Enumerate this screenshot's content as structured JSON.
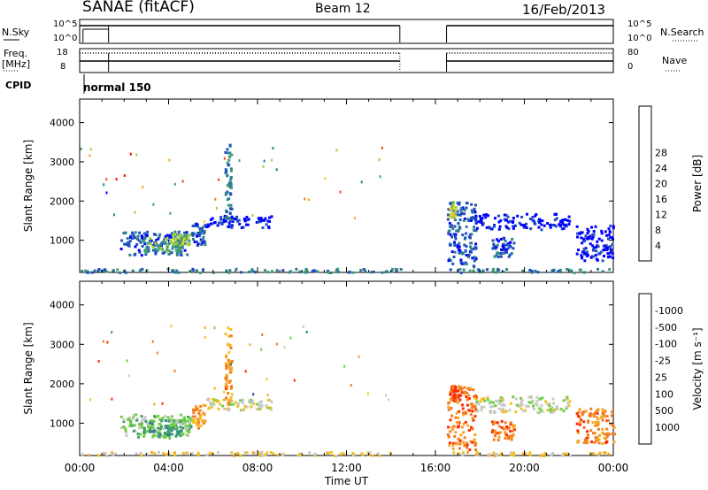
{
  "header": {
    "station": "SANAE (fitACF)",
    "beam": "Beam 12",
    "date": "16/Feb/2013"
  },
  "strip_labels": {
    "nsky": "N.Sky",
    "nsky_ticks": [
      "10^5",
      "10^0"
    ],
    "nsearch": "N.Search",
    "nsearch_ticks": [
      "10^5",
      "10^0"
    ],
    "freq": "Freq.",
    "freq_unit": "[MHz]",
    "freq_ticks": [
      "18",
      "8"
    ],
    "nave": "Nave",
    "nave_ticks": [
      "80",
      "0"
    ],
    "cpid": "CPID",
    "cpid_value": "normal 150"
  },
  "chart_data": [
    {
      "type": "heatmap",
      "name": "power",
      "xlabel": "",
      "ylabel": "Slant Range [km]",
      "x_ticks": [
        "00:00",
        "04:00",
        "08:00",
        "12:00",
        "16:00",
        "20:00",
        "00:00"
      ],
      "xlim_hours": [
        0,
        24
      ],
      "y_ticks": [
        1000,
        2000,
        3000,
        4000
      ],
      "ylim": [
        180,
        4600
      ],
      "colorbar": {
        "label": "Power [dB]",
        "ticks": [
          "4",
          "8",
          "12",
          "16",
          "20",
          "24",
          "28"
        ],
        "colors": [
          "#0000ff",
          "#1f4fbf",
          "#2e7f90",
          "#3f9f6f",
          "#9fcf3f",
          "#f2d020",
          "#f5a623",
          "#f47b20",
          "#f04a16",
          "#ff0000"
        ]
      },
      "clusters": [
        {
          "t": [
            1.8,
            4.9
          ],
          "r": [
            650,
            1250
          ],
          "level": 1
        },
        {
          "t": [
            2.8,
            4.6
          ],
          "r": [
            700,
            1100
          ],
          "level": 3
        },
        {
          "t": [
            4.0,
            5.0
          ],
          "r": [
            900,
            1200
          ],
          "level": 4
        },
        {
          "t": [
            5.0,
            5.6
          ],
          "r": [
            900,
            1500
          ],
          "level": 1
        },
        {
          "t": [
            5.6,
            8.6
          ],
          "r": [
            1350,
            1650
          ],
          "level": 0
        },
        {
          "t": [
            6.5,
            6.8
          ],
          "r": [
            1500,
            3500
          ],
          "level": 2
        },
        {
          "t": [
            16.4,
            17.8
          ],
          "r": [
            350,
            2000
          ],
          "level": 1
        },
        {
          "t": [
            16.6,
            16.9
          ],
          "r": [
            1600,
            2000
          ],
          "level": 4
        },
        {
          "t": [
            17.7,
            22.0
          ],
          "r": [
            1300,
            1700
          ],
          "level": 0
        },
        {
          "t": [
            18.5,
            19.5
          ],
          "r": [
            600,
            1100
          ],
          "level": 1
        },
        {
          "t": [
            22.3,
            24.0
          ],
          "r": [
            500,
            1400
          ],
          "level": 0
        },
        {
          "t": [
            0.0,
            24.0
          ],
          "r": [
            200,
            300
          ],
          "level": 2
        }
      ]
    },
    {
      "type": "heatmap",
      "name": "velocity",
      "xlabel": "Time UT",
      "ylabel": "Slant Range [km]",
      "x_ticks": [
        "00:00",
        "04:00",
        "08:00",
        "12:00",
        "16:00",
        "20:00",
        "00:00"
      ],
      "xlim_hours": [
        0,
        24
      ],
      "y_ticks": [
        1000,
        2000,
        3000,
        4000
      ],
      "ylim": [
        180,
        4600
      ],
      "colorbar": {
        "label": "Velocity [m s⁻¹]",
        "ticks": [
          "1000",
          "500",
          "100",
          "25",
          "-25",
          "-100",
          "-500",
          "-1000"
        ],
        "colors": [
          "#1f3fbf",
          "#2e7f90",
          "#3f9f6f",
          "#6fcf3f",
          "#c8c8c8",
          "#f2c020",
          "#f5a623",
          "#f47b20",
          "#ff2a00"
        ]
      },
      "clusters": [
        {
          "t": [
            1.8,
            4.9
          ],
          "r": [
            650,
            1250
          ],
          "level": 3
        },
        {
          "t": [
            2.8,
            4.6
          ],
          "r": [
            700,
            1100
          ],
          "level": 2
        },
        {
          "t": [
            4.0,
            5.0
          ],
          "r": [
            900,
            1200
          ],
          "level": 3
        },
        {
          "t": [
            5.0,
            5.6
          ],
          "r": [
            900,
            1500
          ],
          "level": 6
        },
        {
          "t": [
            5.6,
            8.6
          ],
          "r": [
            1350,
            1650
          ],
          "level": 4
        },
        {
          "t": [
            6.5,
            6.8
          ],
          "r": [
            1500,
            3500
          ],
          "level": 6
        },
        {
          "t": [
            16.4,
            17.8
          ],
          "r": [
            350,
            2000
          ],
          "level": 7
        },
        {
          "t": [
            16.6,
            16.9
          ],
          "r": [
            1600,
            2000
          ],
          "level": 8
        },
        {
          "t": [
            17.7,
            22.0
          ],
          "r": [
            1300,
            1700
          ],
          "level": 4
        },
        {
          "t": [
            18.5,
            19.5
          ],
          "r": [
            600,
            1100
          ],
          "level": 7
        },
        {
          "t": [
            22.3,
            24.0
          ],
          "r": [
            500,
            1400
          ],
          "level": 7
        },
        {
          "t": [
            0.0,
            24.0
          ],
          "r": [
            200,
            300
          ],
          "level": 5
        }
      ]
    }
  ],
  "data_gaps_hours": [
    [
      14.4,
      16.5
    ]
  ]
}
